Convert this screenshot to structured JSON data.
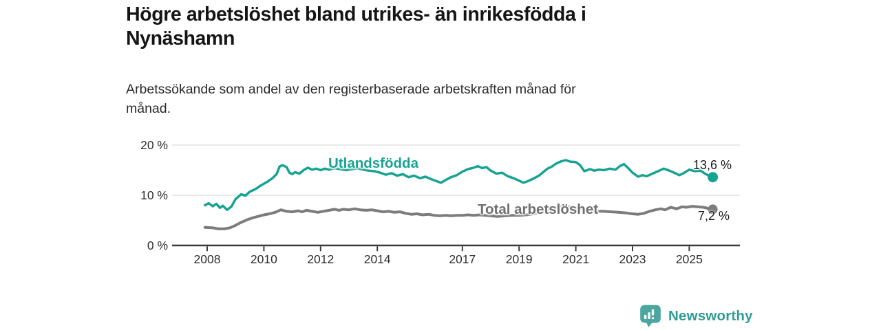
{
  "header": {
    "title": "Högre arbetslöshet bland utrikes- än inrikesfödda i Nynäshamn",
    "title_line1": "Högre arbetslöshet bland utrikes- än inrikesfödda i",
    "title_line2": "Nynäshamn",
    "subtitle": "Arbetssökande som andel av den registerbaserade arbetskraften månad för månad.",
    "subtitle_line1": "Arbetssökande som andel av den registerbaserade arbetskraften månad för",
    "subtitle_line2": "månad."
  },
  "footer": {
    "brand": "Newsworthy",
    "logo_icon": "newsworthy-bar-chart-bubble-icon",
    "brand_color": "#2f9c93",
    "icon_color": "#4ba6a0"
  },
  "colors": {
    "foreign_born_line": "#17a392",
    "total_line": "#7c7c7c",
    "grid": "#e2e2e2",
    "axis": "#3a3a3a",
    "tick_text": "#2e2e2e"
  },
  "chart_data": {
    "type": "line",
    "title": "Högre arbetslöshet bland utrikes- än inrikesfödda i Nynäshamn",
    "subtitle": "Arbetssökande som andel av den registerbaserade arbetskraften månad för månad.",
    "xlabel": "",
    "ylabel": "",
    "xlim": [
      2007.8,
      2026.3
    ],
    "ylim": [
      0,
      21
    ],
    "grid": "horizontal",
    "legend_position": "inline-labels",
    "x_tick_years": [
      2008,
      2010,
      2012,
      2014,
      2017,
      2019,
      2021,
      2023,
      2025
    ],
    "x_tick_labels": [
      "2008",
      "2010",
      "2012",
      "2014",
      "2017",
      "2019",
      "2021",
      "2023",
      "2025"
    ],
    "y_tick_values": [
      0,
      10,
      20
    ],
    "y_tick_labels": [
      "0 %",
      "10 %",
      "20 %"
    ],
    "series": [
      {
        "name": "Utlandsfödda",
        "color": "#17a392",
        "stroke_width": 3.5,
        "end_dot_radius": 7.5,
        "end_label": "13,6 %",
        "end_value": 13.6,
        "points": [
          [
            2007.92,
            8.0
          ],
          [
            2008.05,
            8.4
          ],
          [
            2008.2,
            7.8
          ],
          [
            2008.32,
            8.3
          ],
          [
            2008.45,
            7.5
          ],
          [
            2008.55,
            7.9
          ],
          [
            2008.7,
            7.1
          ],
          [
            2008.85,
            7.7
          ],
          [
            2009.0,
            9.2
          ],
          [
            2009.2,
            10.2
          ],
          [
            2009.35,
            9.9
          ],
          [
            2009.5,
            10.7
          ],
          [
            2009.7,
            11.2
          ],
          [
            2009.85,
            11.8
          ],
          [
            2010.0,
            12.3
          ],
          [
            2010.15,
            12.8
          ],
          [
            2010.3,
            13.4
          ],
          [
            2010.45,
            14.2
          ],
          [
            2010.55,
            15.7
          ],
          [
            2010.65,
            16.0
          ],
          [
            2010.8,
            15.6
          ],
          [
            2010.9,
            14.5
          ],
          [
            2011.0,
            14.2
          ],
          [
            2011.1,
            14.6
          ],
          [
            2011.25,
            14.3
          ],
          [
            2011.4,
            15.0
          ],
          [
            2011.55,
            15.5
          ],
          [
            2011.7,
            15.1
          ],
          [
            2011.85,
            15.3
          ],
          [
            2012.0,
            15.0
          ],
          [
            2012.15,
            15.3
          ],
          [
            2012.3,
            15.1
          ],
          [
            2012.5,
            15.4
          ],
          [
            2012.7,
            15.2
          ],
          [
            2012.9,
            15.0
          ],
          [
            2013.1,
            15.2
          ],
          [
            2013.3,
            15.4
          ],
          [
            2013.5,
            15.1
          ],
          [
            2013.7,
            14.9
          ],
          [
            2013.9,
            14.8
          ],
          [
            2014.1,
            14.5
          ],
          [
            2014.3,
            14.1
          ],
          [
            2014.5,
            14.4
          ],
          [
            2014.7,
            13.9
          ],
          [
            2014.9,
            14.2
          ],
          [
            2015.1,
            13.6
          ],
          [
            2015.3,
            13.9
          ],
          [
            2015.5,
            13.4
          ],
          [
            2015.7,
            13.7
          ],
          [
            2015.9,
            13.2
          ],
          [
            2016.1,
            12.8
          ],
          [
            2016.25,
            12.5
          ],
          [
            2016.4,
            13.0
          ],
          [
            2016.6,
            13.6
          ],
          [
            2016.8,
            14.0
          ],
          [
            2017.0,
            14.7
          ],
          [
            2017.2,
            15.2
          ],
          [
            2017.4,
            15.5
          ],
          [
            2017.55,
            15.8
          ],
          [
            2017.7,
            15.4
          ],
          [
            2017.85,
            15.6
          ],
          [
            2018.0,
            14.9
          ],
          [
            2018.2,
            14.3
          ],
          [
            2018.4,
            14.5
          ],
          [
            2018.6,
            13.8
          ],
          [
            2018.8,
            13.4
          ],
          [
            2019.0,
            12.9
          ],
          [
            2019.15,
            12.5
          ],
          [
            2019.3,
            12.8
          ],
          [
            2019.5,
            13.3
          ],
          [
            2019.7,
            13.9
          ],
          [
            2019.85,
            14.6
          ],
          [
            2020.0,
            15.3
          ],
          [
            2020.15,
            15.7
          ],
          [
            2020.3,
            16.3
          ],
          [
            2020.5,
            16.8
          ],
          [
            2020.65,
            17.0
          ],
          [
            2020.8,
            16.7
          ],
          [
            2021.0,
            16.6
          ],
          [
            2021.15,
            16.0
          ],
          [
            2021.3,
            14.8
          ],
          [
            2021.5,
            15.2
          ],
          [
            2021.65,
            14.9
          ],
          [
            2021.8,
            15.1
          ],
          [
            2022.0,
            15.0
          ],
          [
            2022.2,
            15.3
          ],
          [
            2022.4,
            15.1
          ],
          [
            2022.55,
            15.8
          ],
          [
            2022.7,
            16.2
          ],
          [
            2022.85,
            15.4
          ],
          [
            2023.0,
            14.5
          ],
          [
            2023.2,
            13.7
          ],
          [
            2023.35,
            14.0
          ],
          [
            2023.5,
            13.8
          ],
          [
            2023.7,
            14.3
          ],
          [
            2023.9,
            14.8
          ],
          [
            2024.1,
            15.3
          ],
          [
            2024.3,
            14.9
          ],
          [
            2024.5,
            14.4
          ],
          [
            2024.65,
            14.0
          ],
          [
            2024.8,
            14.4
          ],
          [
            2025.0,
            15.1
          ],
          [
            2025.2,
            14.8
          ],
          [
            2025.4,
            14.9
          ],
          [
            2025.55,
            14.3
          ],
          [
            2025.7,
            13.9
          ],
          [
            2025.83,
            13.6
          ]
        ]
      },
      {
        "name": "Total arbetslöshet",
        "color": "#7c7c7c",
        "stroke_width": 4,
        "end_dot_radius": 7,
        "end_label": "7,2 %",
        "end_value": 7.2,
        "points": [
          [
            2007.92,
            3.6
          ],
          [
            2008.2,
            3.5
          ],
          [
            2008.4,
            3.3
          ],
          [
            2008.6,
            3.3
          ],
          [
            2008.8,
            3.5
          ],
          [
            2009.0,
            4.0
          ],
          [
            2009.2,
            4.6
          ],
          [
            2009.4,
            5.1
          ],
          [
            2009.6,
            5.5
          ],
          [
            2009.8,
            5.8
          ],
          [
            2010.0,
            6.1
          ],
          [
            2010.2,
            6.3
          ],
          [
            2010.4,
            6.6
          ],
          [
            2010.6,
            7.1
          ],
          [
            2010.8,
            6.8
          ],
          [
            2011.0,
            6.7
          ],
          [
            2011.2,
            6.9
          ],
          [
            2011.35,
            6.7
          ],
          [
            2011.5,
            7.0
          ],
          [
            2011.7,
            6.8
          ],
          [
            2011.9,
            6.6
          ],
          [
            2012.1,
            6.8
          ],
          [
            2012.3,
            7.0
          ],
          [
            2012.5,
            7.2
          ],
          [
            2012.65,
            7.0
          ],
          [
            2012.8,
            7.2
          ],
          [
            2013.0,
            7.1
          ],
          [
            2013.2,
            7.3
          ],
          [
            2013.4,
            7.1
          ],
          [
            2013.6,
            7.0
          ],
          [
            2013.8,
            7.1
          ],
          [
            2014.0,
            6.9
          ],
          [
            2014.2,
            6.7
          ],
          [
            2014.4,
            6.8
          ],
          [
            2014.6,
            6.6
          ],
          [
            2014.8,
            6.7
          ],
          [
            2015.0,
            6.4
          ],
          [
            2015.2,
            6.2
          ],
          [
            2015.4,
            6.3
          ],
          [
            2015.6,
            6.1
          ],
          [
            2015.8,
            6.2
          ],
          [
            2016.0,
            6.0
          ],
          [
            2016.2,
            5.9
          ],
          [
            2016.4,
            6.0
          ],
          [
            2016.6,
            5.9
          ],
          [
            2016.8,
            6.0
          ],
          [
            2017.0,
            6.0
          ],
          [
            2017.2,
            6.1
          ],
          [
            2017.4,
            6.0
          ],
          [
            2017.6,
            6.1
          ],
          [
            2017.8,
            6.0
          ],
          [
            2018.0,
            5.9
          ],
          [
            2018.25,
            5.8
          ],
          [
            2018.5,
            5.9
          ],
          [
            2018.75,
            6.0
          ],
          [
            2019.0,
            6.0
          ],
          [
            2019.25,
            6.1
          ],
          [
            2019.5,
            6.3
          ],
          [
            2019.75,
            6.6
          ],
          [
            2020.0,
            7.0
          ],
          [
            2020.25,
            7.5
          ],
          [
            2020.5,
            7.8
          ],
          [
            2020.75,
            7.7
          ],
          [
            2021.0,
            7.5
          ],
          [
            2021.25,
            7.2
          ],
          [
            2021.5,
            7.0
          ],
          [
            2021.75,
            6.8
          ],
          [
            2022.0,
            6.8
          ],
          [
            2022.25,
            6.7
          ],
          [
            2022.5,
            6.6
          ],
          [
            2022.75,
            6.5
          ],
          [
            2023.0,
            6.3
          ],
          [
            2023.2,
            6.2
          ],
          [
            2023.4,
            6.4
          ],
          [
            2023.6,
            6.8
          ],
          [
            2023.8,
            7.1
          ],
          [
            2024.0,
            7.3
          ],
          [
            2024.15,
            7.1
          ],
          [
            2024.35,
            7.6
          ],
          [
            2024.55,
            7.3
          ],
          [
            2024.75,
            7.7
          ],
          [
            2024.9,
            7.6
          ],
          [
            2025.1,
            7.8
          ],
          [
            2025.3,
            7.7
          ],
          [
            2025.5,
            7.6
          ],
          [
            2025.65,
            7.4
          ],
          [
            2025.83,
            7.2
          ]
        ]
      }
    ]
  }
}
